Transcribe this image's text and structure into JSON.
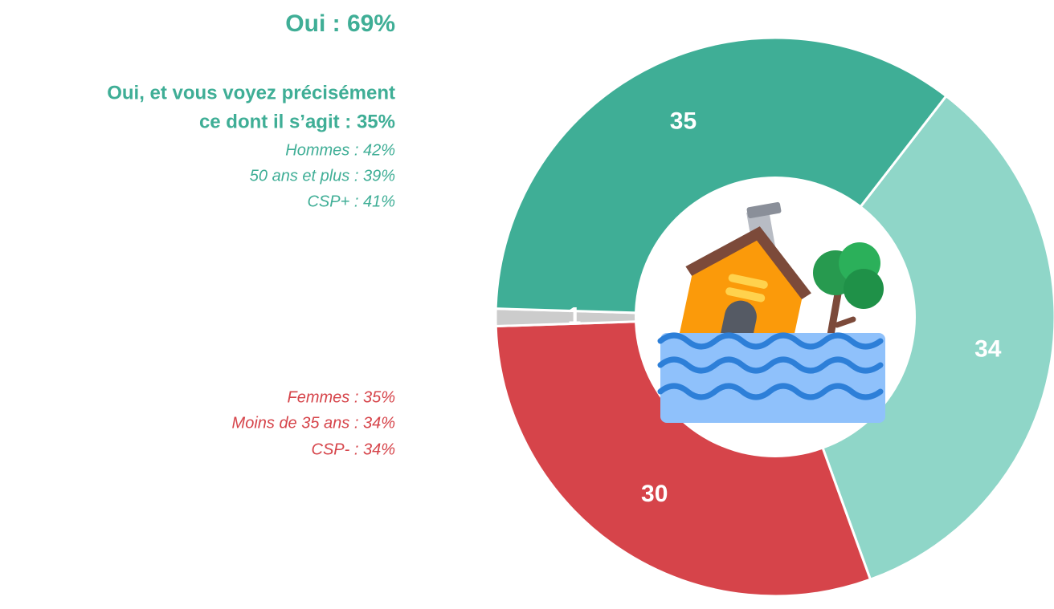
{
  "chart_data": {
    "type": "donut",
    "values": [
      34,
      30,
      1,
      35
    ],
    "colors": [
      "#8fd6c8",
      "#d6444a",
      "#cccccc",
      "#3fae96"
    ],
    "annotations": {
      "headline": "Oui : 69%",
      "subheadline": [
        "Oui, et vous voyez précisément",
        "ce dont il s’agit : 35%"
      ],
      "details_top": [
        "Hommes : 42%",
        "50 ans et plus : 39%",
        "CSP+ : 41%"
      ],
      "details_bottom": [
        "Femmes : 35%",
        "Moins de 35 ans : 34%",
        "CSP- : 34%"
      ]
    }
  }
}
